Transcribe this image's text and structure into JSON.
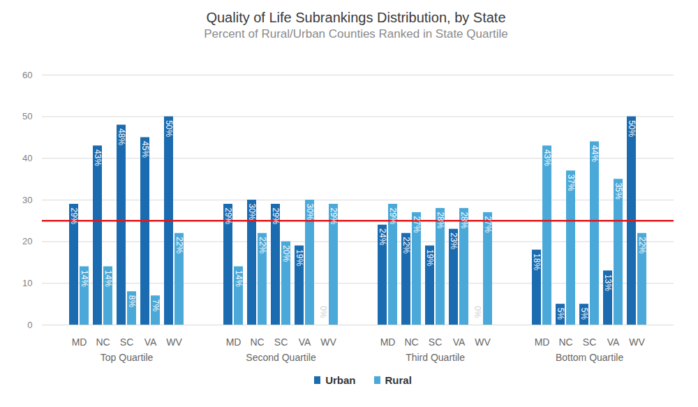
{
  "chart_data": {
    "type": "bar",
    "title": "Quality of Life Subrankings Distribution, by State",
    "subtitle": "Percent of Rural/Urban Counties Ranked in State Quartile",
    "groups": [
      "Top Quartile",
      "Second Quartile",
      "Third Quartile",
      "Bottom Quartile"
    ],
    "categories": [
      "MD",
      "NC",
      "SC",
      "VA",
      "WV"
    ],
    "series": [
      {
        "name": "Urban",
        "color": "#1a6bb0",
        "values": [
          [
            29,
            43,
            48,
            45,
            50
          ],
          [
            29,
            30,
            29,
            19,
            0
          ],
          [
            24,
            22,
            19,
            23,
            0
          ],
          [
            18,
            5,
            5,
            13,
            50
          ]
        ],
        "value_labels": [
          [
            "29%",
            "43%",
            "48%",
            "45%",
            "50%"
          ],
          [
            "29%",
            "30%",
            "29%",
            "19%",
            "0%"
          ],
          [
            "24%",
            "22%",
            "19%",
            "23%",
            "0%"
          ],
          [
            "18%",
            "5%",
            "5%",
            "13%",
            "50%"
          ]
        ]
      },
      {
        "name": "Rural",
        "color": "#4aa9d9",
        "values": [
          [
            14,
            14,
            8,
            7,
            22
          ],
          [
            14,
            22,
            20,
            30,
            29
          ],
          [
            29,
            27,
            28,
            28,
            27
          ],
          [
            43,
            37,
            44,
            35,
            22
          ]
        ],
        "value_labels": [
          [
            "14%",
            "14%",
            "8%",
            "7%",
            "22%"
          ],
          [
            "14%",
            "22%",
            "20%",
            "30%",
            "29%"
          ],
          [
            "29%",
            "27%",
            "28%",
            "28%",
            "27%"
          ],
          [
            "43%",
            "37%",
            "44%",
            "35%",
            "22%"
          ]
        ]
      }
    ],
    "ylim": [
      0,
      60
    ],
    "yticks": [
      0,
      10,
      20,
      30,
      40,
      50,
      60
    ],
    "grid": true,
    "legend": "bottom",
    "data_labels": true,
    "reference_line": 25
  }
}
